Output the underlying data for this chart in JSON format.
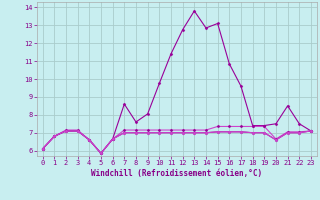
{
  "xlabel": "Windchill (Refroidissement éolien,°C)",
  "bg_color": "#c8eef0",
  "line_color1": "#990099",
  "line_color2": "#cc44cc",
  "grid_color": "#aacccc",
  "text_color": "#880088",
  "x_values": [
    0,
    1,
    2,
    3,
    4,
    5,
    6,
    7,
    8,
    9,
    10,
    11,
    12,
    13,
    14,
    15,
    16,
    17,
    18,
    19,
    20,
    21,
    22,
    23
  ],
  "series1": [
    6.1,
    6.8,
    7.1,
    7.1,
    6.6,
    5.85,
    6.65,
    8.6,
    7.6,
    8.05,
    9.75,
    11.4,
    12.75,
    13.8,
    12.85,
    13.1,
    10.85,
    9.6,
    7.4,
    7.4,
    7.5,
    8.5,
    7.5,
    7.1
  ],
  "series2": [
    6.1,
    6.8,
    7.15,
    7.15,
    6.6,
    5.85,
    6.65,
    7.15,
    7.15,
    7.15,
    7.15,
    7.15,
    7.15,
    7.15,
    7.15,
    7.35,
    7.35,
    7.35,
    7.35,
    7.35,
    6.65,
    7.05,
    7.05,
    7.1
  ],
  "series3": [
    6.1,
    6.8,
    7.1,
    7.1,
    6.6,
    5.85,
    6.65,
    7.0,
    7.0,
    7.0,
    7.0,
    7.0,
    7.0,
    7.0,
    7.0,
    7.05,
    7.05,
    7.05,
    7.0,
    7.0,
    6.6,
    7.0,
    7.0,
    7.1
  ],
  "series4": [
    6.1,
    6.8,
    7.1,
    7.1,
    6.6,
    5.85,
    6.65,
    7.0,
    7.0,
    7.0,
    7.0,
    7.0,
    7.0,
    7.0,
    7.0,
    7.05,
    7.05,
    7.05,
    7.0,
    7.0,
    6.6,
    7.0,
    7.0,
    7.1
  ],
  "ylim": [
    5.7,
    14.3
  ],
  "yticks": [
    6,
    7,
    8,
    9,
    10,
    11,
    12,
    13,
    14
  ],
  "xlim": [
    -0.5,
    23.5
  ],
  "xticks": [
    0,
    1,
    2,
    3,
    4,
    5,
    6,
    7,
    8,
    9,
    10,
    11,
    12,
    13,
    14,
    15,
    16,
    17,
    18,
    19,
    20,
    21,
    22,
    23
  ]
}
